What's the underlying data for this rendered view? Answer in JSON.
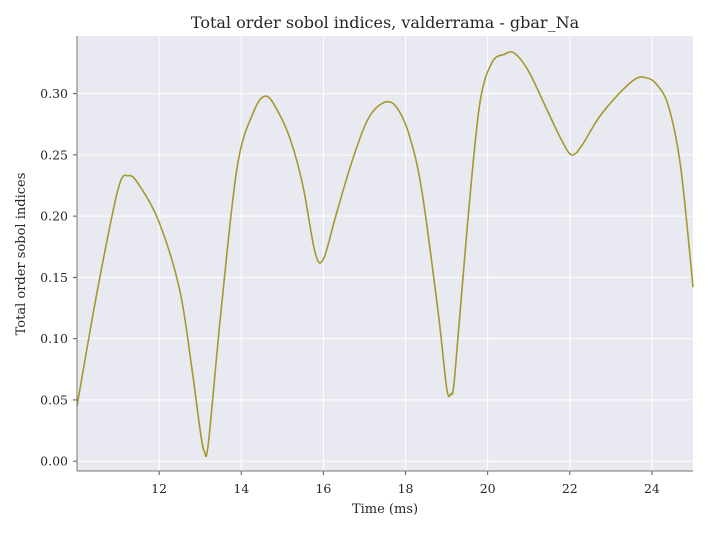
{
  "chart_data": {
    "type": "line",
    "title": "Total order sobol indices, valderrama - gbar_Na",
    "xlabel": "Time (ms)",
    "ylabel": "Total order sobol indices",
    "xlim": [
      10.0,
      25.0
    ],
    "ylim": [
      -0.008,
      0.347
    ],
    "xticks": [
      12,
      14,
      16,
      18,
      20,
      22,
      24
    ],
    "yticks": [
      0.0,
      0.05,
      0.1,
      0.15,
      0.2,
      0.25,
      0.3
    ],
    "grid": true,
    "background": "#e9e9f1",
    "series": [
      {
        "color": "#a39a2b",
        "x": [
          10.0,
          10.5,
          11.0,
          11.25,
          11.5,
          12.0,
          12.5,
          12.8,
          13.0,
          13.1,
          13.2,
          13.5,
          13.9,
          14.3,
          14.6,
          14.9,
          15.2,
          15.5,
          15.8,
          16.0,
          16.3,
          16.7,
          17.1,
          17.5,
          17.8,
          18.1,
          18.4,
          18.8,
          19.0,
          19.1,
          19.2,
          19.5,
          19.8,
          20.1,
          20.4,
          20.65,
          21.0,
          21.4,
          21.8,
          22.05,
          22.3,
          22.7,
          23.2,
          23.6,
          23.85,
          24.1,
          24.4,
          24.7,
          25.0
        ],
        "values": [
          0.045,
          0.14,
          0.222,
          0.233,
          0.226,
          0.195,
          0.14,
          0.075,
          0.025,
          0.008,
          0.015,
          0.12,
          0.24,
          0.285,
          0.298,
          0.285,
          0.262,
          0.225,
          0.17,
          0.165,
          0.2,
          0.245,
          0.28,
          0.293,
          0.288,
          0.265,
          0.22,
          0.12,
          0.06,
          0.055,
          0.07,
          0.19,
          0.29,
          0.325,
          0.332,
          0.333,
          0.318,
          0.29,
          0.262,
          0.25,
          0.258,
          0.28,
          0.3,
          0.312,
          0.313,
          0.308,
          0.29,
          0.24,
          0.142
        ]
      }
    ]
  }
}
